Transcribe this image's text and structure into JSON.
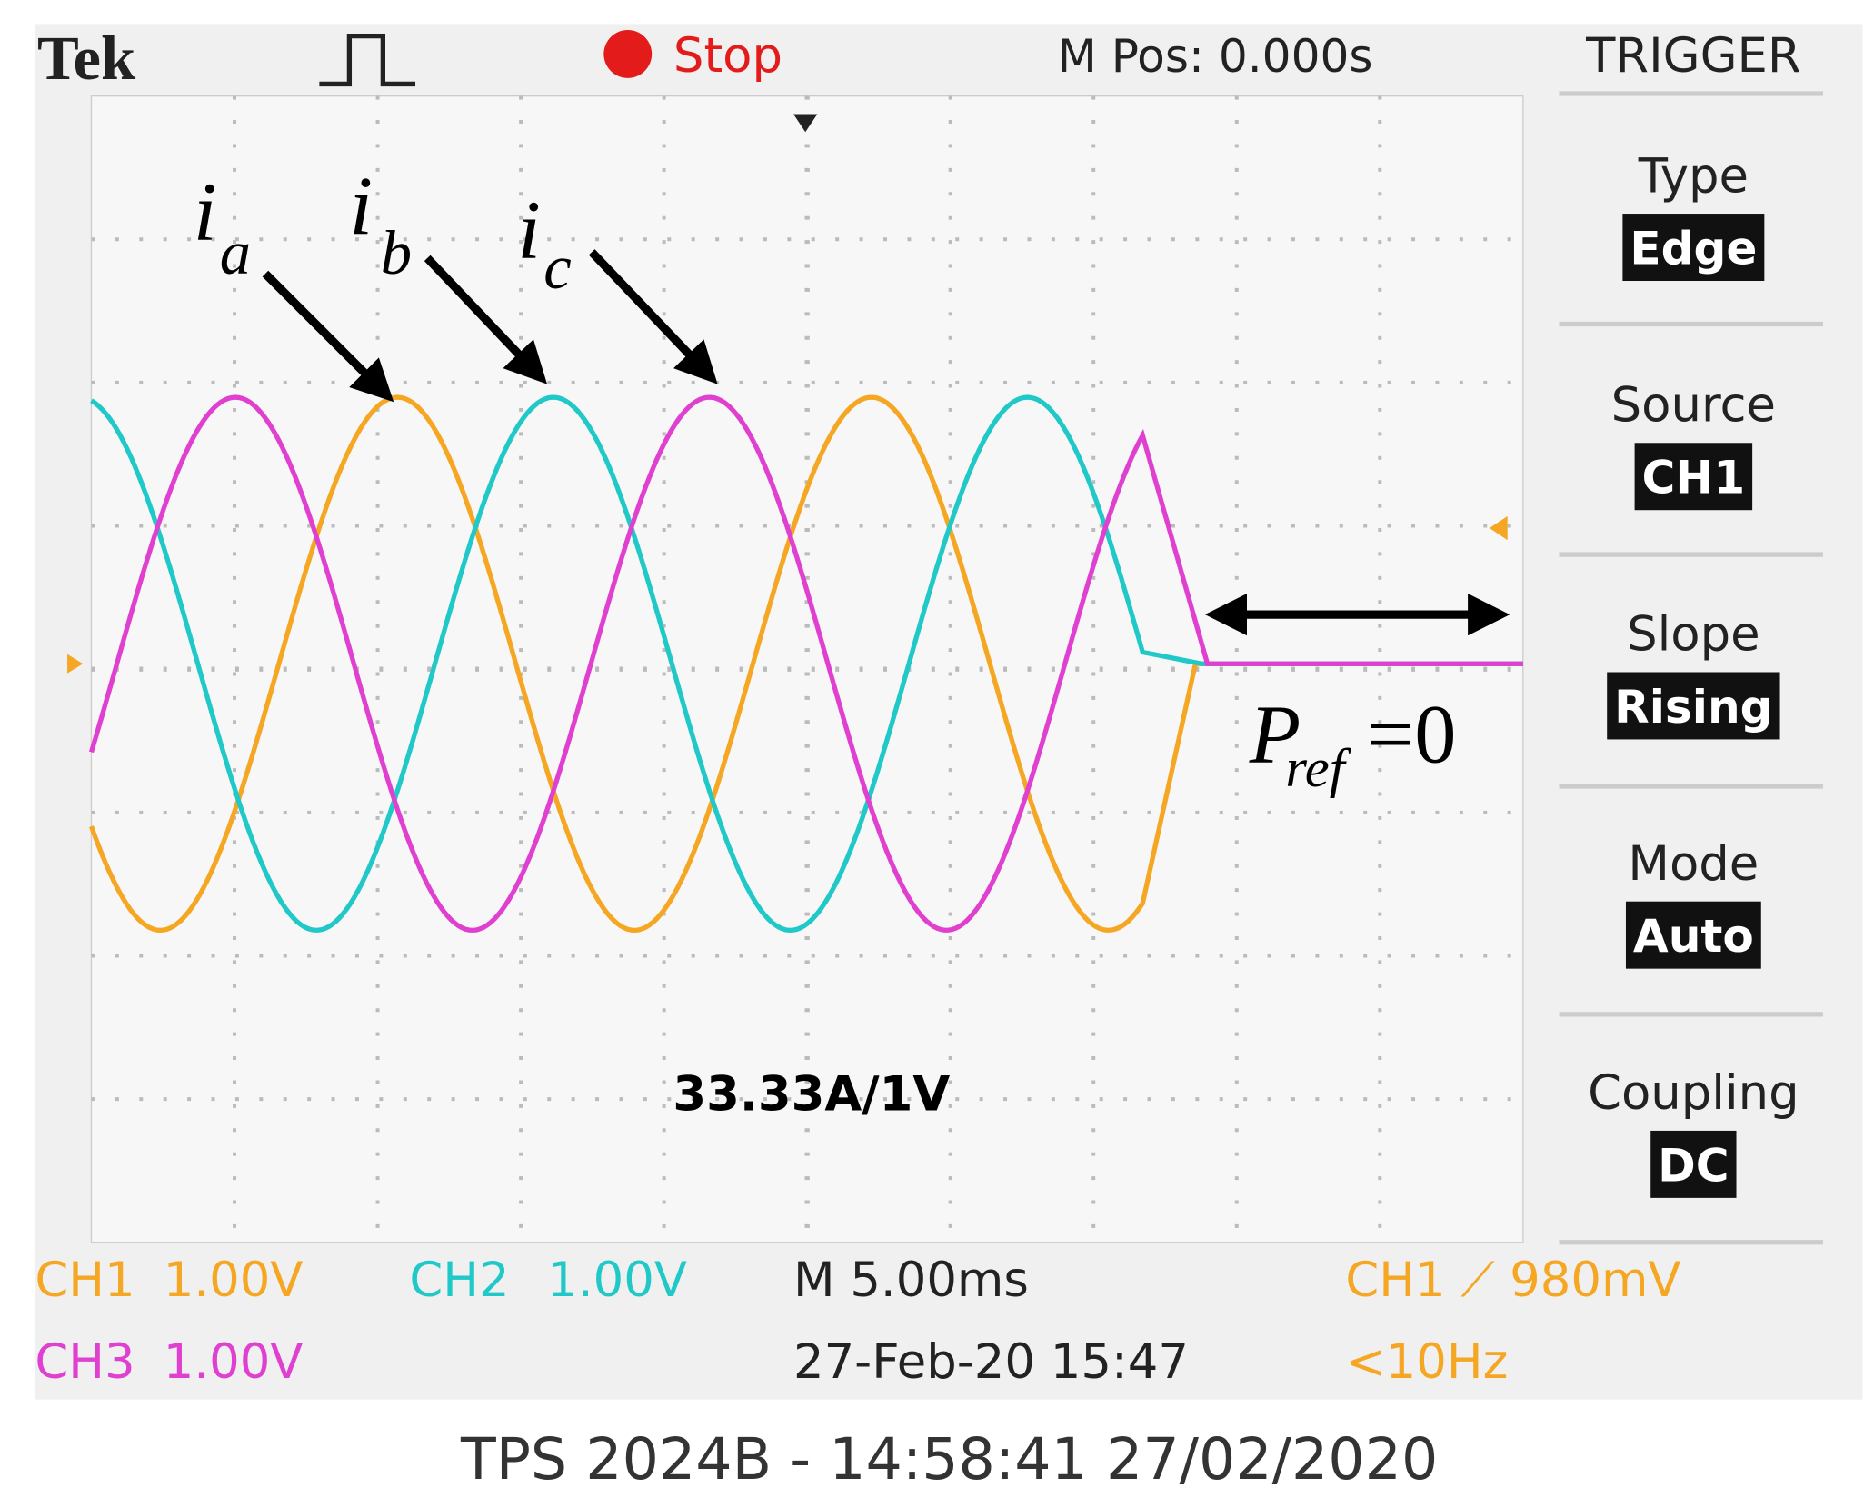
{
  "header": {
    "brand": "Tek",
    "status": "Stop",
    "position": "M Pos: 0.000s",
    "menu_title": "TRIGGER"
  },
  "menu": [
    {
      "label": "Type",
      "value": "Edge"
    },
    {
      "label": "Source",
      "value": "CH1"
    },
    {
      "label": "Slope",
      "value": "Rising"
    },
    {
      "label": "Mode",
      "value": "Auto"
    },
    {
      "label": "Coupling",
      "value": "DC"
    }
  ],
  "annotations": {
    "ia": {
      "base": "i",
      "sub": "a"
    },
    "ib": {
      "base": "i",
      "sub": "b"
    },
    "ic": {
      "base": "i",
      "sub": "c"
    },
    "scale": "33.33A/1V",
    "pref": {
      "base": "P",
      "sub": "ref",
      "rest": "=0"
    }
  },
  "footer": {
    "ch1": "CH1",
    "ch1_scale": "1.00V",
    "ch2": "CH2",
    "ch2_scale": "1.00V",
    "ch3": "CH3",
    "ch3_scale": "1.00V",
    "timebase": "M 5.00ms",
    "date": "27-Feb-20 15:47",
    "trigger": "CH1 ⟋ 980mV",
    "freq": "<10Hz"
  },
  "caption": "TPS 2024B - 14:58:41   27/02/2020"
}
